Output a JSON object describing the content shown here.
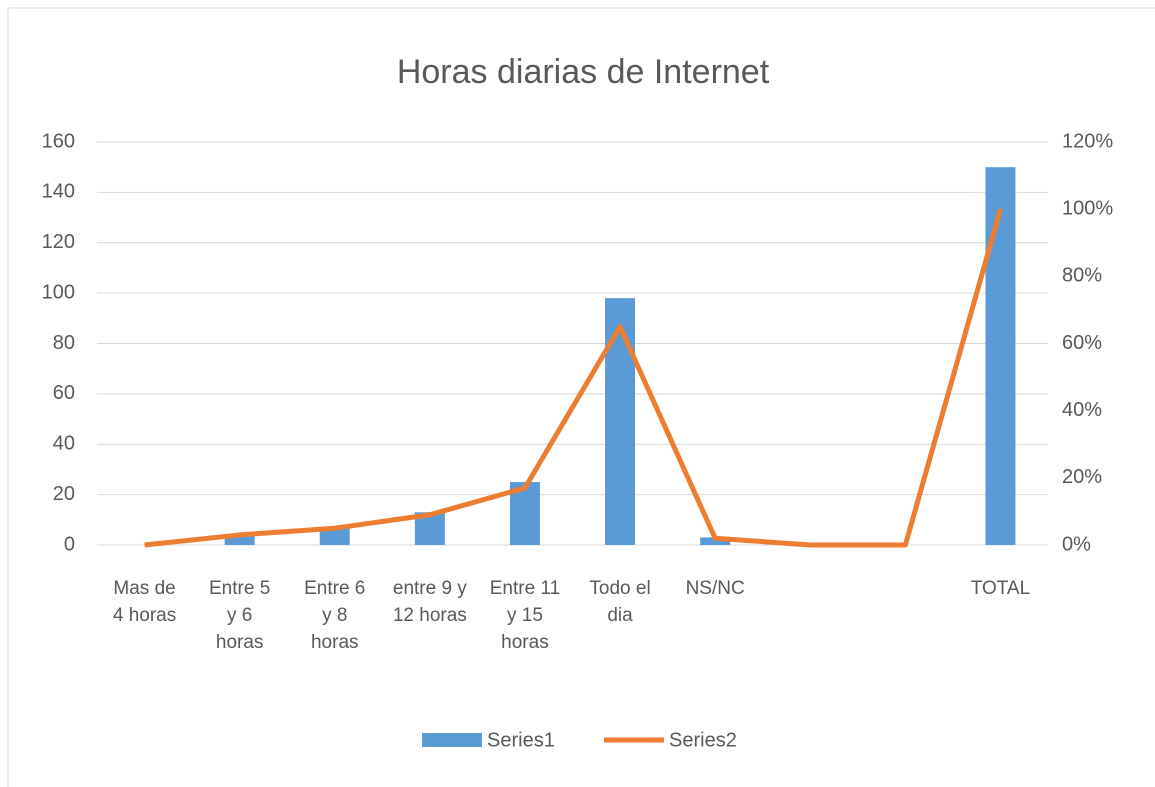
{
  "chart_data": {
    "type": "bar",
    "title": "Horas diarias de Internet",
    "categories": [
      "Mas de 4 horas",
      "Entre 5 y 6 horas",
      "Entre 6 y 8 horas",
      "entre 9 y 12 horas",
      "Entre 11 y 15 horas",
      "Todo el dia",
      "NS/NC",
      null,
      null,
      "TOTAL"
    ],
    "series": [
      {
        "name": "Series1",
        "type": "bar",
        "color": "#5b9bd5",
        "values": [
          0,
          4,
          7,
          13,
          25,
          98,
          3,
          0,
          0,
          150
        ]
      },
      {
        "name": "Series2",
        "type": "line",
        "axis": "y2",
        "color": "#ed7d31",
        "values": [
          0,
          3,
          5,
          9,
          17,
          65,
          2,
          0,
          0,
          100
        ]
      }
    ],
    "ylim": [
      0,
      160
    ],
    "yticks": [
      0,
      20,
      40,
      60,
      80,
      100,
      120,
      140,
      160
    ],
    "y2lim": [
      0,
      120
    ],
    "y2ticks": [
      {
        "value": 0,
        "label": "0%"
      },
      {
        "value": 20,
        "label": "20%"
      },
      {
        "value": 40,
        "label": "40%"
      },
      {
        "value": 60,
        "label": "60%"
      },
      {
        "value": 80,
        "label": "80%"
      },
      {
        "value": 100,
        "label": "100%"
      },
      {
        "value": 120,
        "label": "120%"
      }
    ],
    "grid": true,
    "legend": "bottom"
  }
}
